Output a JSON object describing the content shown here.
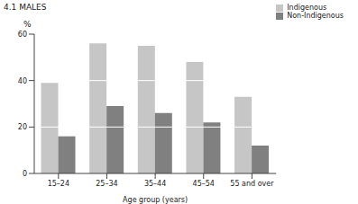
{
  "chart_data": {
    "type": "bar",
    "title": "4.1 MALES",
    "y_label": "%",
    "x_label": "Age group (years)",
    "categories": [
      "15–24",
      "25–34",
      "35–44",
      "45–54",
      "55 and over"
    ],
    "series": [
      {
        "name": "Indigenous",
        "color": "#c6c6c6",
        "values": [
          39,
          56,
          55,
          48,
          33
        ]
      },
      {
        "name": "Non-Indigenous",
        "color": "#808080",
        "values": [
          16,
          29,
          26,
          22,
          12
        ]
      }
    ],
    "ylim": [
      0,
      60
    ],
    "yticks": [
      0,
      20,
      40,
      60
    ],
    "grid": true,
    "legend": "upper right"
  }
}
